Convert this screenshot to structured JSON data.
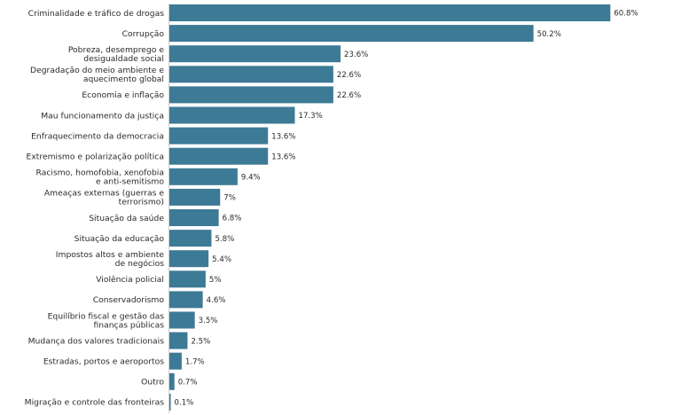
{
  "chart_data": {
    "type": "bar",
    "orientation": "horizontal",
    "title": "",
    "xlabel": "",
    "ylabel": "",
    "xlim": [
      0,
      68
    ],
    "grid": false,
    "bar_color": "#3d7a95",
    "categories": [
      [
        "Criminalidade e tráfico de drogas"
      ],
      [
        "Corrupção"
      ],
      [
        "Pobreza, desemprego e",
        "desigualdade social"
      ],
      [
        "Degradação do meio ambiente e",
        "aquecimento global"
      ],
      [
        "Economia e inflação"
      ],
      [
        "Mau funcionamento da justiça"
      ],
      [
        "Enfraquecimento da democracia"
      ],
      [
        "Extremismo e polarização política"
      ],
      [
        "Racismo, homofobia, xenofobia",
        "e anti-semitismo"
      ],
      [
        "Ameaças externas (guerras e",
        "terrorismo)"
      ],
      [
        "Situação da saúde"
      ],
      [
        "Situação da educação"
      ],
      [
        "Impostos altos e ambiente",
        "de negócios"
      ],
      [
        "Violência policial"
      ],
      [
        "Conservadorismo"
      ],
      [
        "Equilíbrio fiscal e gestão das",
        "finanças públicas"
      ],
      [
        "Mudança dos valores tradicionais"
      ],
      [
        "Estradas, portos e aeroportos"
      ],
      [
        "Outro"
      ],
      [
        "Migração e controle das fronteiras"
      ]
    ],
    "values": [
      60.8,
      50.2,
      23.6,
      22.6,
      22.6,
      17.3,
      13.6,
      13.6,
      9.4,
      7,
      6.8,
      5.8,
      5.4,
      5,
      4.6,
      3.5,
      2.5,
      1.7,
      0.7,
      0.1
    ],
    "value_labels": [
      "60.8%",
      "50.2%",
      "23.6%",
      "22.6%",
      "22.6%",
      "17.3%",
      "13.6%",
      "13.6%",
      "9.4%",
      "7%",
      "6.8%",
      "5.8%",
      "5.4%",
      "5%",
      "4.6%",
      "3.5%",
      "2.5%",
      "1.7%",
      "0.7%",
      "0.1%"
    ]
  }
}
